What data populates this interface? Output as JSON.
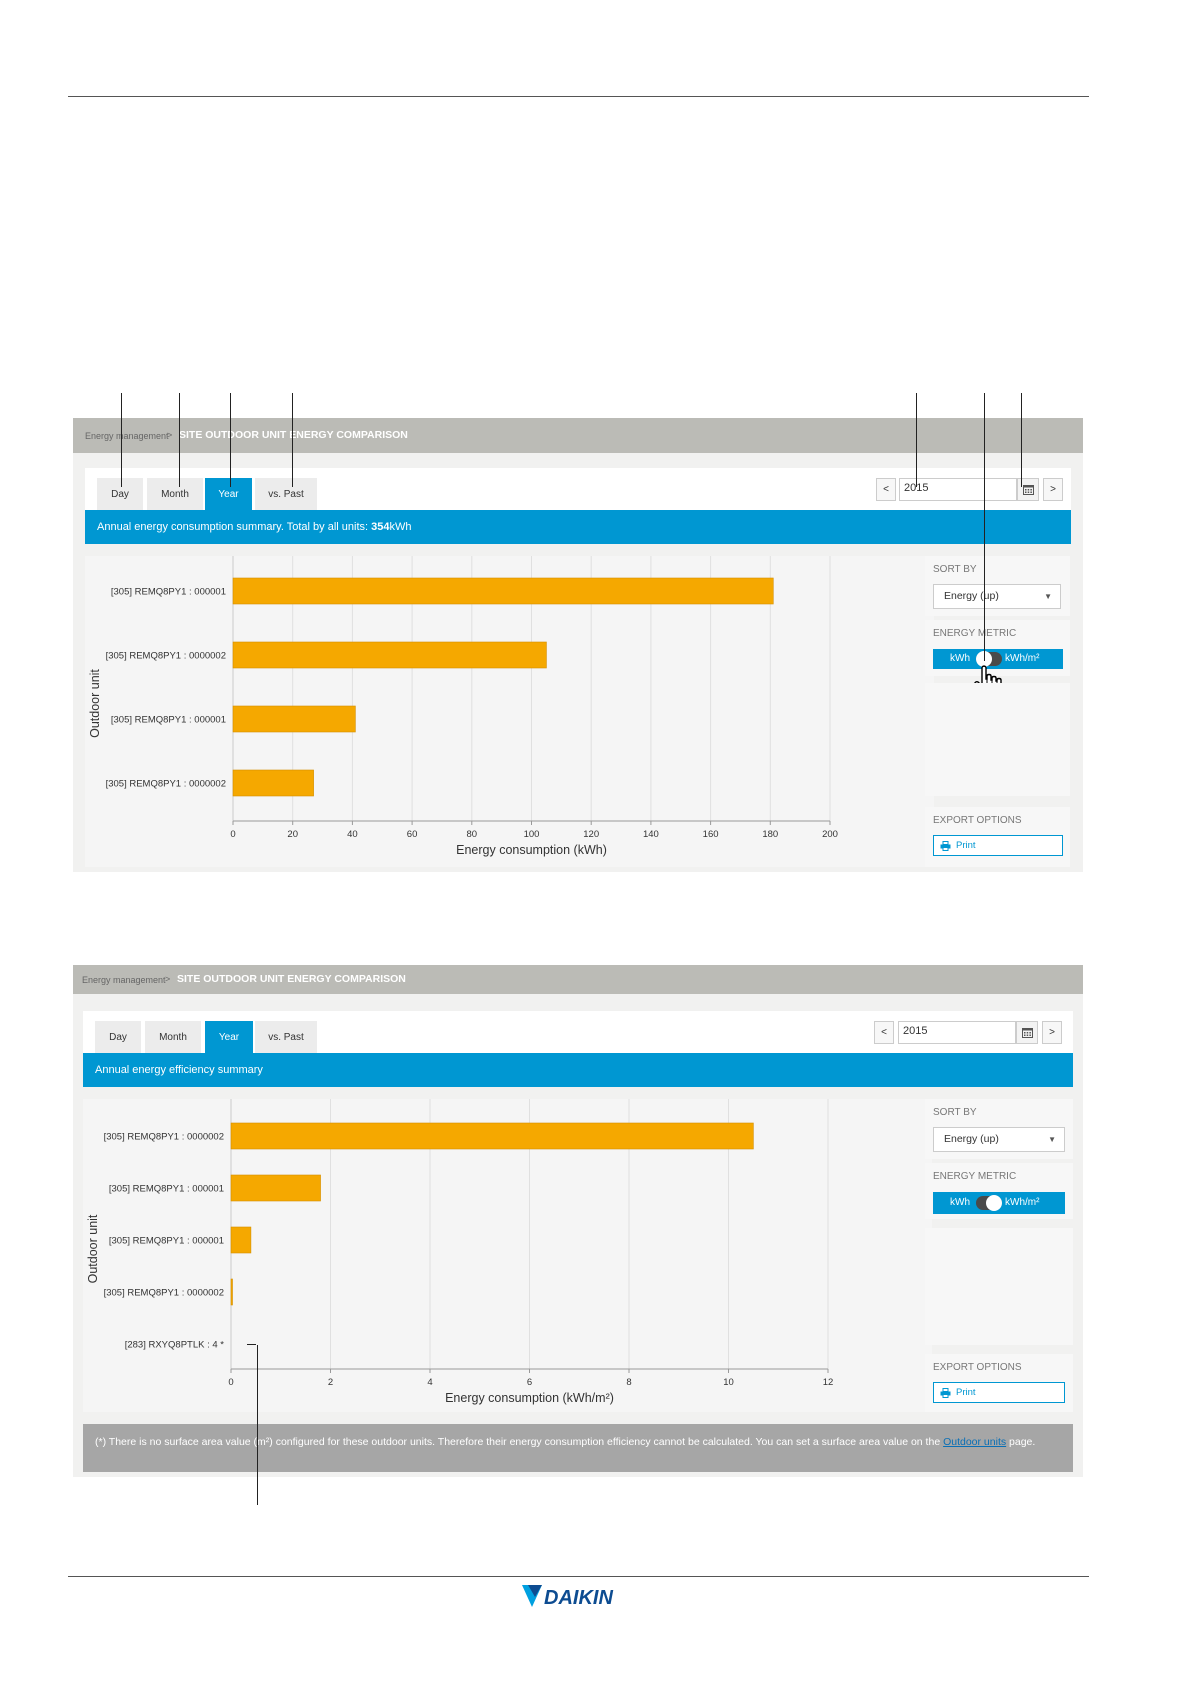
{
  "screenshot1": {
    "breadcrumb": {
      "link": "Energy management",
      "separator": ">",
      "title": "SITE OUTDOOR UNIT ENERGY COMPARISON"
    },
    "tabs": [
      {
        "label": "Day"
      },
      {
        "label": "Month"
      },
      {
        "label": "Year",
        "active": true
      },
      {
        "label": "vs. Past"
      }
    ],
    "prev_label": "<",
    "next_label": ">",
    "date_value": "2015",
    "summary": {
      "text": "Annual energy consumption summary. Total by all units: ",
      "total": "354",
      "unit": " kWh"
    },
    "sort": {
      "label": "SORT BY",
      "value": "Energy (up)"
    },
    "metric": {
      "label": "ENERGY METRIC",
      "left": "kWh",
      "right": "kWh/m²"
    },
    "export": {
      "label": "EXPORT OPTIONS",
      "print": "Print"
    }
  },
  "screenshot2": {
    "breadcrumb": {
      "link": "Energy management",
      "separator": ">",
      "title": "SITE OUTDOOR UNIT ENERGY COMPARISON"
    },
    "tabs": [
      {
        "label": "Day"
      },
      {
        "label": "Month"
      },
      {
        "label": "Year",
        "active": true
      },
      {
        "label": "vs. Past"
      }
    ],
    "prev_label": "<",
    "next_label": ">",
    "date_value": "2015",
    "summary": {
      "text": "Annual energy efficiency summary"
    },
    "sort": {
      "label": "SORT BY",
      "value": "Energy (up)"
    },
    "metric": {
      "label": "ENERGY METRIC",
      "left": "kWh",
      "right": "kWh/m²"
    },
    "export": {
      "label": "EXPORT OPTIONS",
      "print": "Print"
    },
    "note": {
      "text": "(*) There is no surface area value (m²) configured for these outdoor units. Therefore their energy consumption efficiency cannot be calculated. You can set a surface area value on the ",
      "link": "Outdoor units",
      "suffix": " page."
    }
  },
  "chart_data": [
    {
      "type": "bar",
      "orientation": "horizontal",
      "categories": [
        "[305] REMQ8PY1 : 000001",
        "[305] REMQ8PY1 : 0000002",
        "[305] REMQ8PY1 : 000001",
        "[305] REMQ8PY1 : 0000002"
      ],
      "values": [
        181,
        105,
        41,
        27
      ],
      "xlabel": "Energy consumption (kWh)",
      "ylabel": "Outdoor unit",
      "xlim": [
        0,
        200
      ],
      "xticks": [
        0,
        20,
        40,
        60,
        80,
        100,
        120,
        140,
        160,
        180,
        200
      ],
      "bar_color": "#f5a800",
      "grid": true
    },
    {
      "type": "bar",
      "orientation": "horizontal",
      "categories": [
        "[305] REMQ8PY1 : 0000002",
        "[305] REMQ8PY1 : 000001",
        "[305] REMQ8PY1 : 000001",
        "[305] REMQ8PY1 : 0000002",
        "[283] RXYQ8PTLK : 4 *"
      ],
      "values": [
        10.5,
        1.8,
        0.4,
        0.03,
        null
      ],
      "xlabel": "Energy consumption (kWh/m²)",
      "ylabel": "Outdoor unit",
      "xlim": [
        0,
        12
      ],
      "xticks": [
        0,
        2,
        4,
        6,
        8,
        10,
        12
      ],
      "bar_color": "#f5a800",
      "grid": true
    }
  ],
  "brand": {
    "accent": "#0097d2",
    "logo_text": "DAIKIN"
  }
}
